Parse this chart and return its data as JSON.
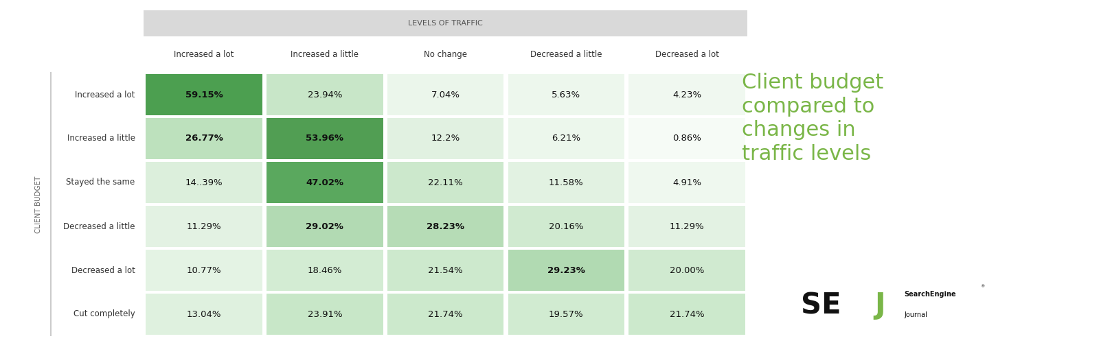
{
  "col_labels": [
    "Increased a lot",
    "Increased a little",
    "No change",
    "Decreased a little",
    "Decreased a lot"
  ],
  "row_labels": [
    "Increased a lot",
    "Increased a little",
    "Stayed the same",
    "Decreased a little",
    "Decreased a lot",
    "Cut completely"
  ],
  "values": [
    [
      59.15,
      23.94,
      7.04,
      5.63,
      4.23
    ],
    [
      26.77,
      53.96,
      12.2,
      6.21,
      0.86
    ],
    [
      14.39,
      47.02,
      22.11,
      11.58,
      4.91
    ],
    [
      11.29,
      29.02,
      28.23,
      20.16,
      11.29
    ],
    [
      10.77,
      18.46,
      21.54,
      29.23,
      20.0
    ],
    [
      13.04,
      23.91,
      21.74,
      19.57,
      21.74
    ]
  ],
  "text_values": [
    [
      "59.15%",
      "23.94%",
      "7.04%",
      "5.63%",
      "4.23%"
    ],
    [
      "26.77%",
      "53.96%",
      "12.2%",
      "6.21%",
      "0.86%"
    ],
    [
      "14..39%",
      "47.02%",
      "22.11%",
      "11.58%",
      "4.91%"
    ],
    [
      "11.29%",
      "29.02%",
      "28.23%",
      "20.16%",
      "11.29%"
    ],
    [
      "10.77%",
      "18.46%",
      "21.54%",
      "29.23%",
      "20.00%"
    ],
    [
      "13.04%",
      "23.91%",
      "21.74%",
      "19.57%",
      "21.74%"
    ]
  ],
  "header_label": "LEVELS OF TRAFFIC",
  "y_axis_label": "CLIENT BUDGET",
  "title_text": "Client budget\ncompared to\nchanges in\ntraffic levels",
  "title_color": "#7ab648",
  "bg_color": "#ffffff",
  "header_bg": "#d9d9d9",
  "bold_threshold": 25.0,
  "font_size_cell": 9.5,
  "font_size_header": 8,
  "font_size_col_label": 8.5,
  "font_size_row_label": 8.5,
  "font_size_title": 22
}
